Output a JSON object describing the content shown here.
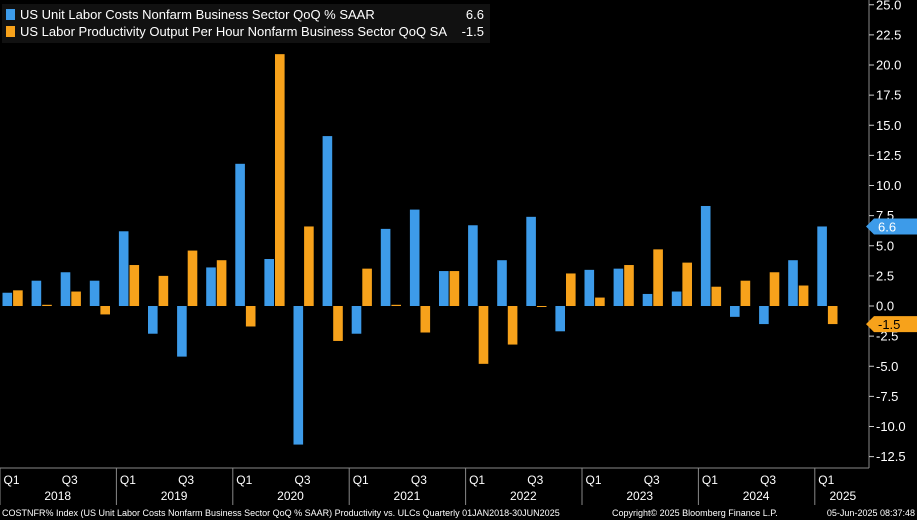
{
  "legend": {
    "series1": {
      "label": "US Unit Labor Costs Nonfarm Business Sector QoQ % SAAR",
      "value": "6.6",
      "color": "#3d9be9"
    },
    "series2": {
      "label": "US Labor Productivity Output Per Hour Nonfarm Business Sector QoQ SA",
      "value": "-1.5",
      "color": "#f7a21b"
    }
  },
  "footer": {
    "source": "COSTNFR% Index (US Unit Labor Costs Nonfarm Business Sector QoQ % SAAR) Productivity vs. ULCs  Quarterly 01JAN2018-30JUN2025",
    "copyright": "Copyright© 2025 Bloomberg Finance L.P.",
    "timestamp": "05-Jun-2025 08:37:48"
  },
  "chart_data": {
    "type": "bar",
    "categories": [
      "2018 Q1",
      "2018 Q2",
      "2018 Q3",
      "2018 Q4",
      "2019 Q1",
      "2019 Q2",
      "2019 Q3",
      "2019 Q4",
      "2020 Q1",
      "2020 Q2",
      "2020 Q3",
      "2020 Q4",
      "2021 Q1",
      "2021 Q2",
      "2021 Q3",
      "2021 Q4",
      "2022 Q1",
      "2022 Q2",
      "2022 Q3",
      "2022 Q4",
      "2023 Q1",
      "2023 Q2",
      "2023 Q3",
      "2023 Q4",
      "2024 Q1",
      "2024 Q2",
      "2024 Q3",
      "2024 Q4",
      "2025 Q1"
    ],
    "series": [
      {
        "name": "US Unit Labor Costs Nonfarm Business Sector QoQ % SAAR",
        "color": "#3d9be9",
        "values": [
          1.1,
          2.1,
          2.8,
          2.1,
          6.2,
          -2.3,
          -4.2,
          3.2,
          11.8,
          3.9,
          -11.5,
          14.1,
          -2.3,
          6.4,
          8.0,
          2.9,
          6.7,
          3.8,
          7.4,
          -2.1,
          3.0,
          3.1,
          1.0,
          1.2,
          8.3,
          -0.9,
          -1.5,
          3.8,
          6.6
        ]
      },
      {
        "name": "US Labor Productivity Output Per Hour Nonfarm Business Sector QoQ SA",
        "color": "#f7a21b",
        "values": [
          1.3,
          0.1,
          1.2,
          -0.7,
          3.4,
          2.5,
          4.6,
          3.8,
          -1.7,
          20.9,
          6.6,
          -2.9,
          3.1,
          0.1,
          -2.2,
          2.9,
          -4.8,
          -3.2,
          0.0,
          2.7,
          0.7,
          3.4,
          4.7,
          3.6,
          1.6,
          2.1,
          2.8,
          1.7,
          -1.5
        ]
      }
    ],
    "y_ticks": [
      "25.0",
      "22.5",
      "20.0",
      "17.5",
      "15.0",
      "12.5",
      "10.0",
      "7.5",
      "5.0",
      "2.5",
      "0.0",
      "-2.5",
      "-5.0",
      "-7.5",
      "-10.0",
      "-12.5"
    ],
    "ylim": [
      -13.2,
      25.6
    ],
    "x_quarter_ticks": [
      "Q1",
      "Q3",
      "Q1",
      "Q3",
      "Q1",
      "Q3",
      "Q1",
      "Q3",
      "Q1",
      "Q3",
      "Q1",
      "Q3",
      "Q1",
      "Q3",
      "Q1"
    ],
    "x_years": [
      "2018",
      "2019",
      "2020",
      "2021",
      "2022",
      "2023",
      "2024",
      "2025"
    ],
    "last_value_labels": [
      "6.6",
      "-1.5"
    ]
  }
}
